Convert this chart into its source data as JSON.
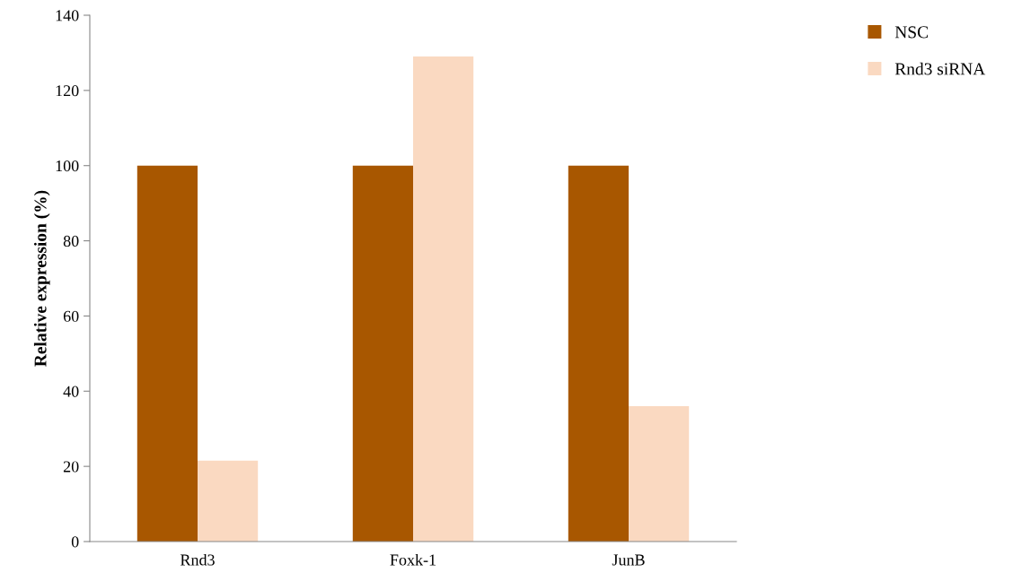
{
  "chart_data": {
    "type": "bar",
    "ylabel": "Relative expression (%)",
    "categories": [
      "Rnd3",
      "Foxk-1",
      "JunB"
    ],
    "series": [
      {
        "name": "NSC",
        "color": "#a85700",
        "values": [
          100,
          100,
          100
        ]
      },
      {
        "name": "Rnd3 siRNA",
        "color": "#fad9c1",
        "values": [
          21.5,
          129,
          36
        ]
      }
    ],
    "ylim": [
      0,
      140
    ],
    "yticks": [
      0,
      20,
      40,
      60,
      80,
      100,
      120,
      140
    ],
    "grid": false,
    "legend": "top right"
  }
}
